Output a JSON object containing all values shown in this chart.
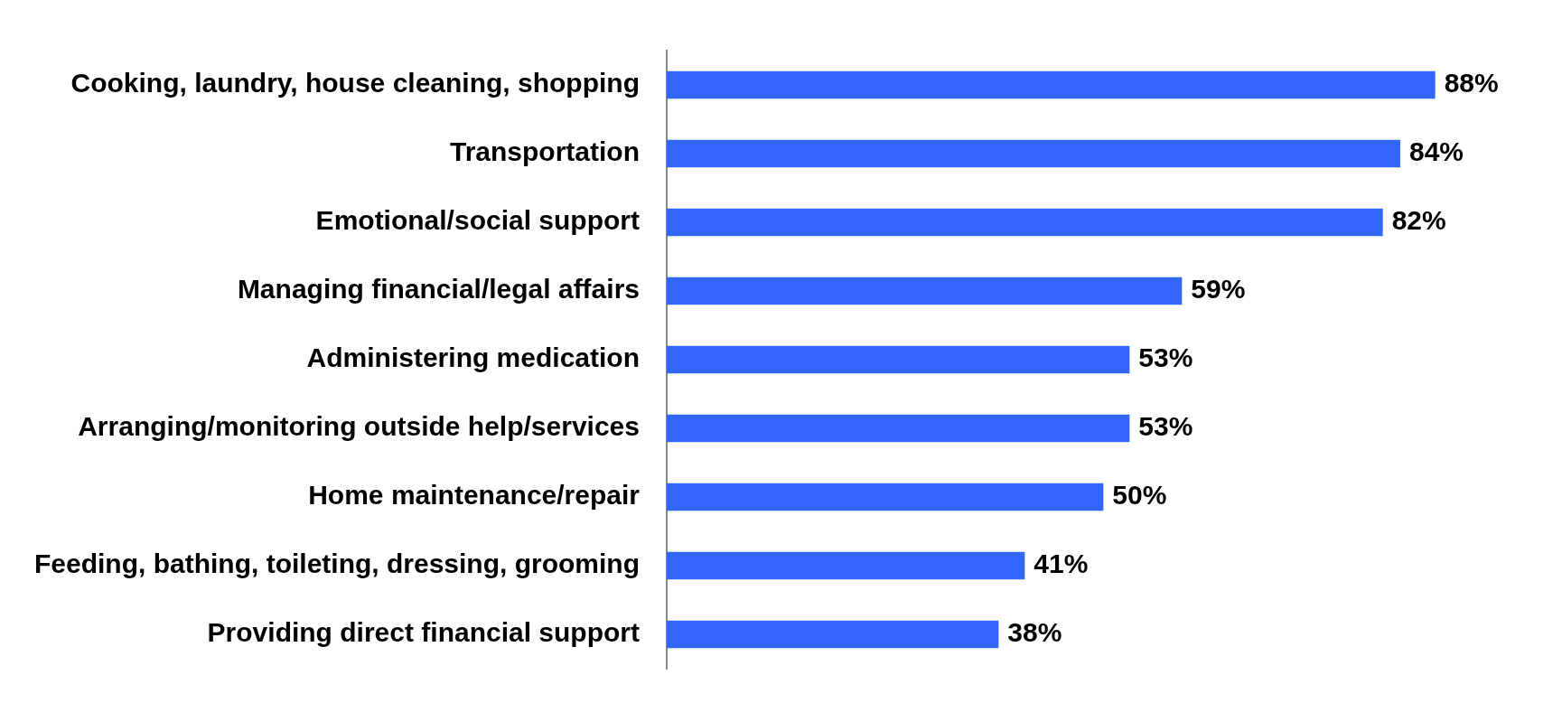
{
  "chart_data": {
    "type": "bar",
    "orientation": "horizontal",
    "categories": [
      "Cooking, laundry, house cleaning, shopping",
      "Transportation",
      "Emotional/social support",
      "Managing financial/legal affairs",
      "Administering medication",
      "Arranging/monitoring outside help/services",
      "Home maintenance/repair",
      "Feeding, bathing, toileting, dressing, grooming",
      "Providing direct financial support"
    ],
    "values": [
      88,
      84,
      82,
      59,
      53,
      53,
      50,
      41,
      38
    ],
    "value_labels": [
      "88%",
      "84%",
      "82%",
      "59%",
      "53%",
      "53%",
      "50%",
      "41%",
      "38%"
    ],
    "color": "#3366ff",
    "legend": false
  }
}
